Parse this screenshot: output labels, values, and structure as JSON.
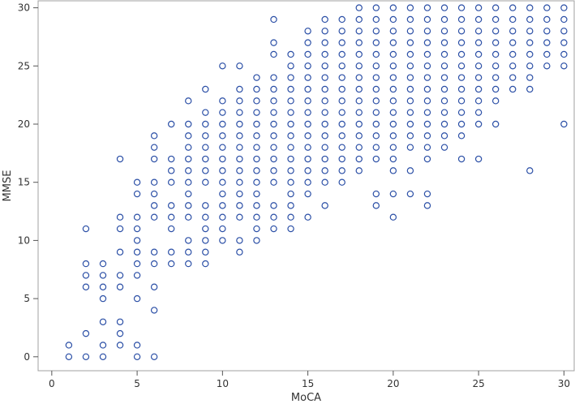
{
  "chart_data": {
    "type": "scatter",
    "title": "",
    "xlabel": "MoCA",
    "ylabel": "MMSE",
    "xlim": [
      -0.8,
      30.6
    ],
    "ylim": [
      -1.2,
      30.6
    ],
    "xticks": [
      "0",
      "5",
      "10",
      "15",
      "20",
      "25",
      "30"
    ],
    "yticks": [
      "0",
      "5",
      "10",
      "15",
      "20",
      "25",
      "30"
    ],
    "grid": false,
    "marker": "open-circle",
    "marker_color": "#2b4fa6",
    "frame_color": "#a0a0a0",
    "points": [
      [
        1,
        0
      ],
      [
        1,
        1
      ],
      [
        2,
        0
      ],
      [
        2,
        2
      ],
      [
        2,
        6
      ],
      [
        2,
        7
      ],
      [
        2,
        8
      ],
      [
        2,
        11
      ],
      [
        3,
        0
      ],
      [
        3,
        1
      ],
      [
        3,
        3
      ],
      [
        3,
        5
      ],
      [
        3,
        6
      ],
      [
        3,
        7
      ],
      [
        3,
        8
      ],
      [
        4,
        1
      ],
      [
        4,
        2
      ],
      [
        4,
        3
      ],
      [
        4,
        6
      ],
      [
        4,
        7
      ],
      [
        4,
        9
      ],
      [
        4,
        11
      ],
      [
        4,
        12
      ],
      [
        4,
        17
      ],
      [
        5,
        0
      ],
      [
        5,
        1
      ],
      [
        5,
        5
      ],
      [
        5,
        7
      ],
      [
        5,
        8
      ],
      [
        5,
        9
      ],
      [
        5,
        10
      ],
      [
        5,
        11
      ],
      [
        5,
        12
      ],
      [
        5,
        14
      ],
      [
        5,
        15
      ],
      [
        6,
        0
      ],
      [
        6,
        4
      ],
      [
        6,
        6
      ],
      [
        6,
        8
      ],
      [
        6,
        9
      ],
      [
        6,
        12
      ],
      [
        6,
        13
      ],
      [
        6,
        14
      ],
      [
        6,
        15
      ],
      [
        6,
        17
      ],
      [
        6,
        18
      ],
      [
        6,
        19
      ],
      [
        7,
        8
      ],
      [
        7,
        9
      ],
      [
        7,
        11
      ],
      [
        7,
        12
      ],
      [
        7,
        13
      ],
      [
        7,
        15
      ],
      [
        7,
        16
      ],
      [
        7,
        17
      ],
      [
        7,
        20
      ],
      [
        8,
        8
      ],
      [
        8,
        9
      ],
      [
        8,
        10
      ],
      [
        8,
        12
      ],
      [
        8,
        13
      ],
      [
        8,
        14
      ],
      [
        8,
        15
      ],
      [
        8,
        16
      ],
      [
        8,
        17
      ],
      [
        8,
        18
      ],
      [
        8,
        19
      ],
      [
        8,
        20
      ],
      [
        8,
        22
      ],
      [
        9,
        8
      ],
      [
        9,
        9
      ],
      [
        9,
        10
      ],
      [
        9,
        11
      ],
      [
        9,
        12
      ],
      [
        9,
        13
      ],
      [
        9,
        15
      ],
      [
        9,
        16
      ],
      [
        9,
        17
      ],
      [
        9,
        18
      ],
      [
        9,
        19
      ],
      [
        9,
        20
      ],
      [
        9,
        21
      ],
      [
        9,
        23
      ],
      [
        10,
        10
      ],
      [
        10,
        11
      ],
      [
        10,
        12
      ],
      [
        10,
        13
      ],
      [
        10,
        14
      ],
      [
        10,
        15
      ],
      [
        10,
        16
      ],
      [
        10,
        17
      ],
      [
        10,
        18
      ],
      [
        10,
        19
      ],
      [
        10,
        20
      ],
      [
        10,
        21
      ],
      [
        10,
        22
      ],
      [
        10,
        25
      ],
      [
        11,
        9
      ],
      [
        11,
        10
      ],
      [
        11,
        12
      ],
      [
        11,
        13
      ],
      [
        11,
        14
      ],
      [
        11,
        15
      ],
      [
        11,
        16
      ],
      [
        11,
        17
      ],
      [
        11,
        18
      ],
      [
        11,
        19
      ],
      [
        11,
        20
      ],
      [
        11,
        21
      ],
      [
        11,
        22
      ],
      [
        11,
        23
      ],
      [
        11,
        25
      ],
      [
        12,
        10
      ],
      [
        12,
        11
      ],
      [
        12,
        12
      ],
      [
        12,
        13
      ],
      [
        12,
        14
      ],
      [
        12,
        15
      ],
      [
        12,
        16
      ],
      [
        12,
        17
      ],
      [
        12,
        18
      ],
      [
        12,
        19
      ],
      [
        12,
        20
      ],
      [
        12,
        21
      ],
      [
        12,
        22
      ],
      [
        12,
        23
      ],
      [
        12,
        24
      ],
      [
        13,
        11
      ],
      [
        13,
        12
      ],
      [
        13,
        13
      ],
      [
        13,
        15
      ],
      [
        13,
        16
      ],
      [
        13,
        17
      ],
      [
        13,
        18
      ],
      [
        13,
        19
      ],
      [
        13,
        20
      ],
      [
        13,
        21
      ],
      [
        13,
        22
      ],
      [
        13,
        23
      ],
      [
        13,
        24
      ],
      [
        13,
        26
      ],
      [
        13,
        27
      ],
      [
        13,
        29
      ],
      [
        14,
        11
      ],
      [
        14,
        12
      ],
      [
        14,
        13
      ],
      [
        14,
        14
      ],
      [
        14,
        15
      ],
      [
        14,
        16
      ],
      [
        14,
        17
      ],
      [
        14,
        18
      ],
      [
        14,
        19
      ],
      [
        14,
        20
      ],
      [
        14,
        21
      ],
      [
        14,
        22
      ],
      [
        14,
        23
      ],
      [
        14,
        24
      ],
      [
        14,
        25
      ],
      [
        14,
        26
      ],
      [
        15,
        12
      ],
      [
        15,
        14
      ],
      [
        15,
        15
      ],
      [
        15,
        16
      ],
      [
        15,
        17
      ],
      [
        15,
        18
      ],
      [
        15,
        19
      ],
      [
        15,
        20
      ],
      [
        15,
        21
      ],
      [
        15,
        22
      ],
      [
        15,
        23
      ],
      [
        15,
        24
      ],
      [
        15,
        25
      ],
      [
        15,
        26
      ],
      [
        15,
        27
      ],
      [
        15,
        28
      ],
      [
        16,
        13
      ],
      [
        16,
        15
      ],
      [
        16,
        16
      ],
      [
        16,
        17
      ],
      [
        16,
        18
      ],
      [
        16,
        19
      ],
      [
        16,
        20
      ],
      [
        16,
        21
      ],
      [
        16,
        22
      ],
      [
        16,
        23
      ],
      [
        16,
        24
      ],
      [
        16,
        25
      ],
      [
        16,
        26
      ],
      [
        16,
        27
      ],
      [
        16,
        28
      ],
      [
        16,
        29
      ],
      [
        17,
        15
      ],
      [
        17,
        16
      ],
      [
        17,
        17
      ],
      [
        17,
        18
      ],
      [
        17,
        19
      ],
      [
        17,
        20
      ],
      [
        17,
        21
      ],
      [
        17,
        22
      ],
      [
        17,
        23
      ],
      [
        17,
        24
      ],
      [
        17,
        25
      ],
      [
        17,
        26
      ],
      [
        17,
        27
      ],
      [
        17,
        28
      ],
      [
        17,
        29
      ],
      [
        18,
        16
      ],
      [
        18,
        17
      ],
      [
        18,
        18
      ],
      [
        18,
        19
      ],
      [
        18,
        20
      ],
      [
        18,
        21
      ],
      [
        18,
        22
      ],
      [
        18,
        23
      ],
      [
        18,
        24
      ],
      [
        18,
        25
      ],
      [
        18,
        26
      ],
      [
        18,
        27
      ],
      [
        18,
        28
      ],
      [
        18,
        29
      ],
      [
        18,
        30
      ],
      [
        19,
        13
      ],
      [
        19,
        14
      ],
      [
        19,
        17
      ],
      [
        19,
        18
      ],
      [
        19,
        19
      ],
      [
        19,
        20
      ],
      [
        19,
        21
      ],
      [
        19,
        22
      ],
      [
        19,
        23
      ],
      [
        19,
        24
      ],
      [
        19,
        25
      ],
      [
        19,
        26
      ],
      [
        19,
        27
      ],
      [
        19,
        28
      ],
      [
        19,
        29
      ],
      [
        19,
        30
      ],
      [
        20,
        12
      ],
      [
        20,
        14
      ],
      [
        20,
        16
      ],
      [
        20,
        17
      ],
      [
        20,
        18
      ],
      [
        20,
        19
      ],
      [
        20,
        20
      ],
      [
        20,
        21
      ],
      [
        20,
        22
      ],
      [
        20,
        23
      ],
      [
        20,
        24
      ],
      [
        20,
        25
      ],
      [
        20,
        26
      ],
      [
        20,
        27
      ],
      [
        20,
        28
      ],
      [
        20,
        29
      ],
      [
        20,
        30
      ],
      [
        21,
        14
      ],
      [
        21,
        16
      ],
      [
        21,
        18
      ],
      [
        21,
        19
      ],
      [
        21,
        20
      ],
      [
        21,
        21
      ],
      [
        21,
        22
      ],
      [
        21,
        23
      ],
      [
        21,
        24
      ],
      [
        21,
        25
      ],
      [
        21,
        26
      ],
      [
        21,
        27
      ],
      [
        21,
        28
      ],
      [
        21,
        29
      ],
      [
        21,
        30
      ],
      [
        22,
        13
      ],
      [
        22,
        14
      ],
      [
        22,
        17
      ],
      [
        22,
        18
      ],
      [
        22,
        19
      ],
      [
        22,
        20
      ],
      [
        22,
        21
      ],
      [
        22,
        22
      ],
      [
        22,
        23
      ],
      [
        22,
        24
      ],
      [
        22,
        25
      ],
      [
        22,
        26
      ],
      [
        22,
        27
      ],
      [
        22,
        28
      ],
      [
        22,
        29
      ],
      [
        22,
        30
      ],
      [
        23,
        18
      ],
      [
        23,
        19
      ],
      [
        23,
        20
      ],
      [
        23,
        21
      ],
      [
        23,
        22
      ],
      [
        23,
        23
      ],
      [
        23,
        24
      ],
      [
        23,
        25
      ],
      [
        23,
        26
      ],
      [
        23,
        27
      ],
      [
        23,
        28
      ],
      [
        23,
        29
      ],
      [
        23,
        30
      ],
      [
        24,
        17
      ],
      [
        24,
        19
      ],
      [
        24,
        20
      ],
      [
        24,
        21
      ],
      [
        24,
        22
      ],
      [
        24,
        23
      ],
      [
        24,
        24
      ],
      [
        24,
        25
      ],
      [
        24,
        26
      ],
      [
        24,
        27
      ],
      [
        24,
        28
      ],
      [
        24,
        29
      ],
      [
        24,
        30
      ],
      [
        25,
        17
      ],
      [
        25,
        20
      ],
      [
        25,
        21
      ],
      [
        25,
        22
      ],
      [
        25,
        23
      ],
      [
        25,
        24
      ],
      [
        25,
        25
      ],
      [
        25,
        26
      ],
      [
        25,
        27
      ],
      [
        25,
        28
      ],
      [
        25,
        29
      ],
      [
        25,
        30
      ],
      [
        26,
        20
      ],
      [
        26,
        22
      ],
      [
        26,
        23
      ],
      [
        26,
        24
      ],
      [
        26,
        25
      ],
      [
        26,
        26
      ],
      [
        26,
        27
      ],
      [
        26,
        28
      ],
      [
        26,
        29
      ],
      [
        26,
        30
      ],
      [
        27,
        23
      ],
      [
        27,
        24
      ],
      [
        27,
        25
      ],
      [
        27,
        26
      ],
      [
        27,
        27
      ],
      [
        27,
        28
      ],
      [
        27,
        29
      ],
      [
        27,
        30
      ],
      [
        28,
        16
      ],
      [
        28,
        23
      ],
      [
        28,
        24
      ],
      [
        28,
        25
      ],
      [
        28,
        26
      ],
      [
        28,
        27
      ],
      [
        28,
        28
      ],
      [
        28,
        29
      ],
      [
        28,
        30
      ],
      [
        29,
        25
      ],
      [
        29,
        26
      ],
      [
        29,
        27
      ],
      [
        29,
        28
      ],
      [
        29,
        29
      ],
      [
        29,
        30
      ],
      [
        30,
        20
      ],
      [
        30,
        25
      ],
      [
        30,
        26
      ],
      [
        30,
        27
      ],
      [
        30,
        28
      ],
      [
        30,
        29
      ],
      [
        30,
        30
      ]
    ]
  }
}
